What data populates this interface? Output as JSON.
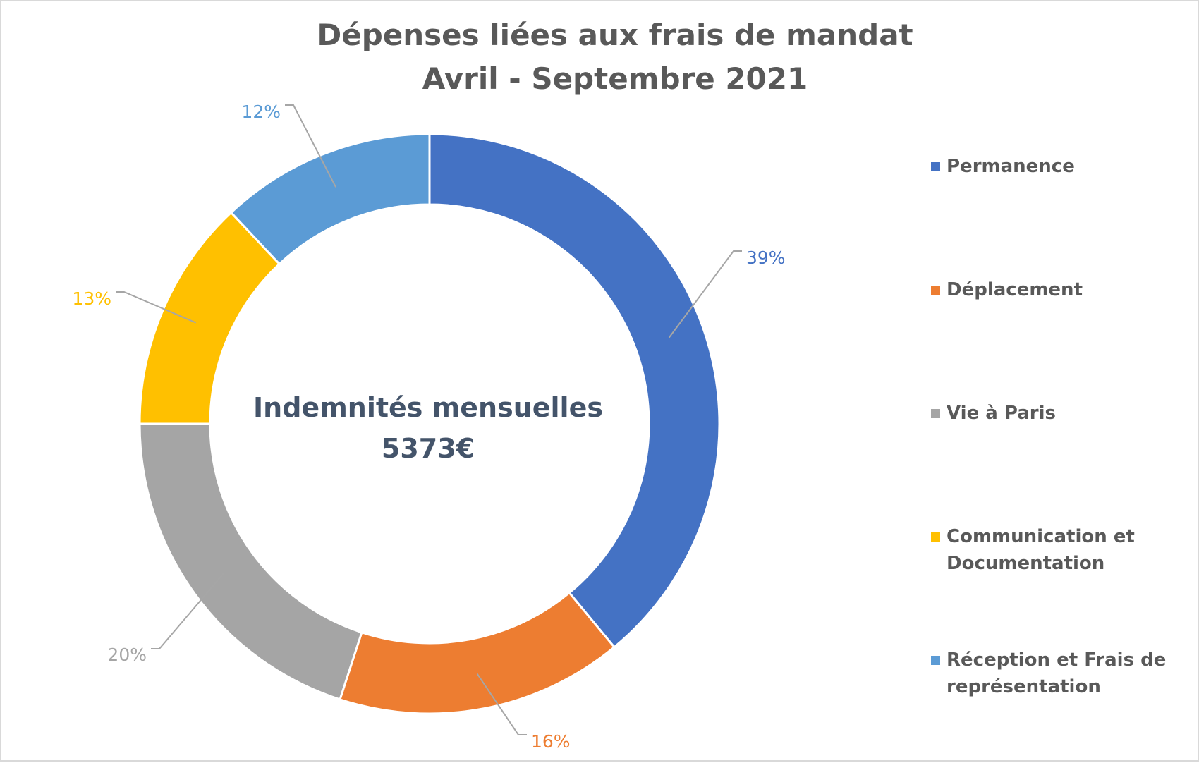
{
  "chart_data": {
    "type": "pie",
    "title": "Dépenses liées aux frais de mandat",
    "subtitle": "Avril - Septembre 2021",
    "center_label": {
      "line1": "Indemnités mensuelles",
      "line2": "5373€"
    },
    "categories": [
      "Permanence",
      "Déplacement",
      "Vie à Paris",
      "Communication et Documentation",
      "Réception et Frais de représentation"
    ],
    "values": [
      39,
      16,
      20,
      13,
      12
    ],
    "data_labels": [
      "39%",
      "16%",
      "20%",
      "13%",
      "12%"
    ],
    "colors": [
      "#4472c4",
      "#ed7d31",
      "#a5a5a5",
      "#ffc000",
      "#5b9bd5"
    ],
    "legend_position": "right",
    "legend_lines": [
      [
        "Permanence"
      ],
      [
        "Déplacement"
      ],
      [
        "Vie à Paris"
      ],
      [
        "Communication et",
        "Documentation"
      ],
      [
        "Réception et Frais de",
        "représentation"
      ]
    ]
  }
}
